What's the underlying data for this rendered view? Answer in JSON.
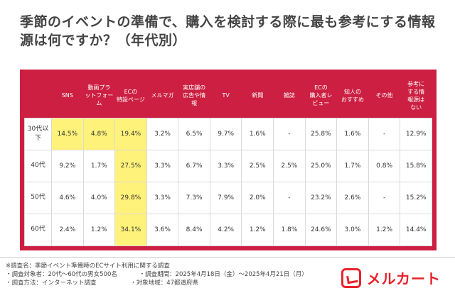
{
  "title": "季節のイベントの準備で、購入を検討する際に最も参考にする情報源は何ですか？（年代別）",
  "table": {
    "corner": "",
    "headers": [
      "SNS",
      "動画プラ\nットフォーム",
      "ECの\n特設ページ",
      "メルマガ",
      "実店舗の\n広告や情\n報",
      "TV",
      "新聞",
      "雑誌",
      "ECの\n購入者レ\nビュー",
      "知人の\nおすすめ",
      "その他",
      "参考に\nする情\n報源は\nない"
    ],
    "rows": [
      {
        "label": "30代以\n下",
        "cells": [
          "14.5%",
          "4.8%",
          "19.4%",
          "3.2%",
          "6.5%",
          "9.7%",
          "1.6%",
          "-",
          "25.8%",
          "1.6%",
          "-",
          "12.9%"
        ]
      },
      {
        "label": "40代",
        "cells": [
          "9.2%",
          "1.7%",
          "27.5%",
          "3.3%",
          "6.7%",
          "3.3%",
          "2.5%",
          "2.5%",
          "25.0%",
          "1.7%",
          "0.8%",
          "15.8%"
        ]
      },
      {
        "label": "50代",
        "cells": [
          "4.6%",
          "4.0%",
          "29.8%",
          "3.3%",
          "7.3%",
          "7.9%",
          "2.0%",
          "-",
          "23.2%",
          "2.6%",
          "-",
          "15.2%"
        ]
      },
      {
        "label": "60代",
        "cells": [
          "2.4%",
          "1.2%",
          "34.1%",
          "3.6%",
          "8.4%",
          "4.2%",
          "1.2%",
          "1.8%",
          "24.6%",
          "3.0%",
          "1.2%",
          "14.4%"
        ]
      }
    ],
    "highlight": [
      [
        0,
        0
      ],
      [
        0,
        1
      ],
      [
        0,
        2
      ],
      [
        1,
        2
      ],
      [
        2,
        2
      ],
      [
        3,
        2
      ]
    ],
    "colors": {
      "header_bg": "#cc1f41",
      "highlight": "#fff27a"
    }
  },
  "footer": {
    "survey_name": "※調査名：季節イベント準備時のECサイト利用に関する調査",
    "subjects": "・調査対象者：20代〜60代の男女500名",
    "period": "・調査期間：2025年4月18日（金）〜2025年4月21日（月）",
    "method": "・調査方法：インターネット調査",
    "region": "・対象地域：47都道府県",
    "brand": "メルカート",
    "brand_color": "#e8232b"
  }
}
